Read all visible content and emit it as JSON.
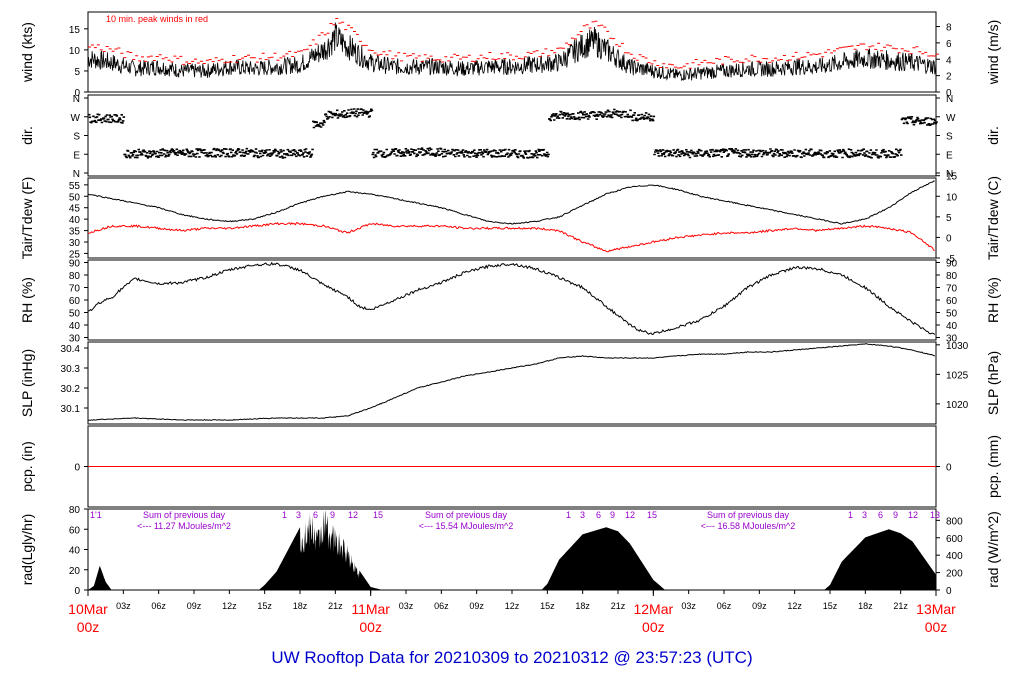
{
  "title": "UW Rooftop Data for 20210309  to  20210312 @ 23:57:23  (UTC)",
  "colors": {
    "frame": "#000000",
    "peak": "#ff0000",
    "dew": "#ff0000",
    "precip": "#ff0000",
    "date_labels": "#ff0000",
    "annotation": "#9900cc",
    "title": "#0000cc",
    "radiation_fill": "#000000"
  },
  "x_axis": {
    "major_labels": [
      {
        "date": "10Mar",
        "hour": "00z"
      },
      {
        "date": "11Mar",
        "hour": "00z"
      },
      {
        "date": "12Mar",
        "hour": "00z"
      },
      {
        "date": "13Mar",
        "hour": "00z"
      }
    ],
    "minor_labels": [
      "03z",
      "06z",
      "09z",
      "12z",
      "15z",
      "18z",
      "21z",
      "03z",
      "06z",
      "09z",
      "12z",
      "15z",
      "18z",
      "21z",
      "03z",
      "06z",
      "09z",
      "12z",
      "15z",
      "18z",
      "21z"
    ],
    "range_hours": [
      0,
      72
    ]
  },
  "panels": {
    "wind": {
      "ylabel_left": "wind (kts)",
      "ylabel_right": "wind (m/s)",
      "note": "10 min. peak winds in red",
      "left_ticks": [
        "0",
        "5",
        "10",
        "15"
      ],
      "right_ticks": [
        "0",
        "2",
        "4",
        "6",
        "8"
      ]
    },
    "dir": {
      "ylabel_left": "dir.",
      "ylabel_right": "dir.",
      "ticks": [
        "N",
        "W",
        "S",
        "E",
        "N"
      ]
    },
    "temp": {
      "ylabel_left": "Tair/Tdew (F)",
      "ylabel_right": "Tair/Tdew (C)",
      "left_ticks": [
        "25",
        "30",
        "35",
        "40",
        "45",
        "50",
        "55"
      ],
      "right_ticks": [
        "-5",
        "0",
        "5",
        "10",
        "15"
      ]
    },
    "rh": {
      "ylabel_left": "RH (%)",
      "ylabel_right": "RH (%)",
      "ticks": [
        "30",
        "40",
        "50",
        "60",
        "70",
        "80",
        "90"
      ]
    },
    "slp": {
      "ylabel_left": "SLP (inHg)",
      "ylabel_right": "SLP (hPa)",
      "left_ticks": [
        "30.1",
        "30.2",
        "30.3",
        "30.4"
      ],
      "right_ticks": [
        "1020",
        "1025",
        "1030"
      ]
    },
    "pcp": {
      "ylabel_left": "pcp. (in)",
      "ylabel_right": "pcp. (mm)",
      "left_ticks": [
        "0"
      ],
      "right_ticks": [
        "0"
      ]
    },
    "rad": {
      "ylabel_left": "rad(Lgly/hr)",
      "ylabel_right": "rad (W/m^2)",
      "left_ticks": [
        "0",
        "20",
        "40",
        "60",
        "80"
      ],
      "right_ticks": [
        "0",
        "200",
        "400",
        "600",
        "800"
      ],
      "hour_marks": [
        [
          "1'1"
        ],
        [
          "1",
          "3",
          "6",
          "9",
          "12",
          "15"
        ],
        [
          "1",
          "3",
          "6",
          "9",
          "12",
          "15"
        ],
        [
          "1",
          "3",
          "6",
          "9",
          "12",
          "13"
        ]
      ],
      "annotations": [
        {
          "line1": "Sum of previous day",
          "line2": "<--- 11.27 MJoules/m^2"
        },
        {
          "line1": "Sum of previous day",
          "line2": "<--- 15.54 MJoules/m^2"
        },
        {
          "line1": "Sum of previous day",
          "line2": "<--- 16.58 MJoules/m^2"
        }
      ]
    }
  },
  "chart_data": [
    {
      "type": "line",
      "name": "wind",
      "title": "",
      "xlabel": "",
      "ylabel": "wind (kts)",
      "ylim": [
        0,
        19
      ],
      "x": [
        0,
        2,
        4,
        6,
        8,
        10,
        12,
        14,
        16,
        18,
        20,
        21,
        22,
        24,
        26,
        28,
        30,
        32,
        34,
        36,
        38,
        40,
        42,
        43,
        44,
        46,
        48,
        50,
        52,
        54,
        56,
        58,
        60,
        62,
        64,
        66,
        68,
        70,
        72
      ],
      "series": [
        {
          "name": "wind",
          "values": [
            8,
            7,
            5.5,
            6,
            5,
            5,
            6,
            5.5,
            6,
            6.5,
            10,
            13,
            11,
            7,
            6,
            6,
            6,
            5.5,
            6,
            6,
            6.5,
            7,
            11,
            12,
            10,
            6,
            5,
            4,
            4.5,
            5,
            5.5,
            5.5,
            6,
            6,
            7,
            8,
            7.5,
            7,
            6
          ]
        },
        {
          "name": "10 min. peak winds",
          "values": [
            11,
            10,
            8,
            8.5,
            7.5,
            7,
            8,
            8,
            8.5,
            9,
            14,
            17,
            15,
            10,
            8.5,
            8,
            8,
            8,
            8.5,
            8.5,
            9,
            10,
            15,
            16,
            14,
            9,
            7,
            6,
            7,
            7.5,
            8,
            8,
            8.5,
            9,
            10,
            11,
            10.5,
            10,
            9
          ]
        }
      ]
    },
    {
      "type": "scatter",
      "name": "wind direction",
      "ylim": [
        "N",
        "W",
        "S",
        "E",
        "N"
      ],
      "x": [
        0,
        2,
        3,
        6,
        8,
        10,
        12,
        14,
        16,
        18,
        19,
        20,
        21,
        22,
        24,
        26,
        28,
        30,
        32,
        34,
        36,
        38,
        39,
        40,
        42,
        44,
        46,
        48,
        50,
        52,
        54,
        56,
        58,
        60,
        62,
        64,
        66,
        68,
        69,
        70,
        72
      ],
      "y": [
        262,
        260,
        93,
        96,
        96,
        97,
        98,
        95,
        92,
        95,
        235,
        278,
        282,
        288,
        95,
        98,
        100,
        95,
        95,
        94,
        92,
        93,
        272,
        277,
        278,
        285,
        270,
        96,
        93,
        95,
        97,
        96,
        95,
        95,
        93,
        95,
        92,
        95,
        250,
        248,
        240
      ]
    },
    {
      "type": "line",
      "name": "temperature",
      "ylabel": "Tair/Tdew (F)",
      "ylim": [
        23,
        58
      ],
      "x": [
        0,
        2,
        4,
        6,
        8,
        10,
        12,
        14,
        16,
        18,
        20,
        22,
        24,
        26,
        28,
        30,
        32,
        34,
        36,
        38,
        40,
        42,
        44,
        46,
        48,
        50,
        52,
        54,
        56,
        58,
        60,
        62,
        64,
        66,
        68,
        70,
        72
      ],
      "series": [
        {
          "name": "Tair",
          "values": [
            51,
            49,
            47,
            45,
            42,
            40,
            39,
            40,
            43,
            47,
            50,
            52,
            51,
            49,
            47,
            45,
            42,
            39,
            38,
            39,
            41,
            46,
            51,
            54,
            55,
            53,
            50,
            48,
            46,
            44,
            42,
            40,
            38,
            40,
            45,
            52,
            57
          ]
        },
        {
          "name": "Tdew",
          "values": [
            34,
            37,
            37,
            36,
            35,
            36,
            36,
            37,
            38,
            38,
            37,
            34,
            38,
            37,
            37,
            37,
            36,
            36,
            36,
            36,
            35,
            30,
            26,
            28,
            30,
            32,
            33,
            34,
            34,
            35,
            36,
            35,
            36,
            37,
            36,
            34,
            26
          ]
        }
      ]
    },
    {
      "type": "line",
      "name": "relative humidity",
      "ylabel": "RH (%)",
      "ylim": [
        28,
        92
      ],
      "x": [
        0,
        1,
        2,
        3,
        4,
        6,
        8,
        10,
        12,
        14,
        16,
        18,
        20,
        22,
        23,
        24,
        26,
        28,
        30,
        32,
        34,
        36,
        38,
        40,
        42,
        44,
        46,
        47,
        48,
        50,
        52,
        54,
        56,
        58,
        60,
        62,
        64,
        66,
        68,
        70,
        72
      ],
      "series": [
        {
          "name": "RH",
          "values": [
            50,
            58,
            62,
            70,
            77,
            73,
            74,
            78,
            84,
            88,
            89,
            84,
            72,
            63,
            55,
            52,
            60,
            68,
            74,
            82,
            87,
            89,
            85,
            78,
            70,
            55,
            40,
            35,
            33,
            38,
            44,
            55,
            70,
            80,
            86,
            85,
            80,
            70,
            55,
            42,
            31
          ]
        }
      ]
    },
    {
      "type": "line",
      "name": "sea level pressure",
      "ylabel": "SLP (inHg)",
      "ylim": [
        30.02,
        30.43
      ],
      "x": [
        0,
        4,
        8,
        12,
        16,
        20,
        22,
        24,
        26,
        28,
        30,
        32,
        34,
        36,
        38,
        40,
        42,
        44,
        46,
        48,
        50,
        52,
        54,
        56,
        58,
        60,
        62,
        64,
        66,
        68,
        70,
        72
      ],
      "series": [
        {
          "name": "SLP",
          "values": [
            30.04,
            30.05,
            30.04,
            30.04,
            30.05,
            30.05,
            30.06,
            30.1,
            30.15,
            30.2,
            30.23,
            30.26,
            30.28,
            30.3,
            30.32,
            30.35,
            30.36,
            30.35,
            30.35,
            30.35,
            30.36,
            30.37,
            30.37,
            30.38,
            30.38,
            30.39,
            30.4,
            30.41,
            30.42,
            30.41,
            30.39,
            30.36
          ]
        }
      ]
    },
    {
      "type": "line",
      "name": "precipitation",
      "ylabel": "pcp. (in)",
      "ylim": [
        -1,
        1
      ],
      "x": [
        0,
        72
      ],
      "series": [
        {
          "name": "pcp",
          "values": [
            0,
            0
          ]
        }
      ]
    },
    {
      "type": "area",
      "name": "solar radiation",
      "ylabel": "rad(Lgly/hr)",
      "ylim": [
        0,
        80
      ],
      "x": [
        0,
        0.5,
        1,
        1.5,
        2,
        14.5,
        15,
        16,
        17,
        18,
        19,
        19.5,
        20,
        21,
        22,
        23,
        24,
        25,
        38.5,
        39,
        40,
        42,
        44,
        45,
        46,
        48,
        49,
        62.5,
        63,
        64,
        66,
        68,
        69,
        70,
        72
      ],
      "series": [
        {
          "name": "rad",
          "values": [
            0,
            4,
            24,
            8,
            0,
            0,
            5,
            18,
            40,
            62,
            74,
            58,
            80,
            60,
            45,
            20,
            3,
            0,
            0,
            6,
            30,
            55,
            62,
            58,
            46,
            10,
            0,
            0,
            5,
            28,
            52,
            60,
            56,
            48,
            15
          ]
        }
      ]
    }
  ]
}
